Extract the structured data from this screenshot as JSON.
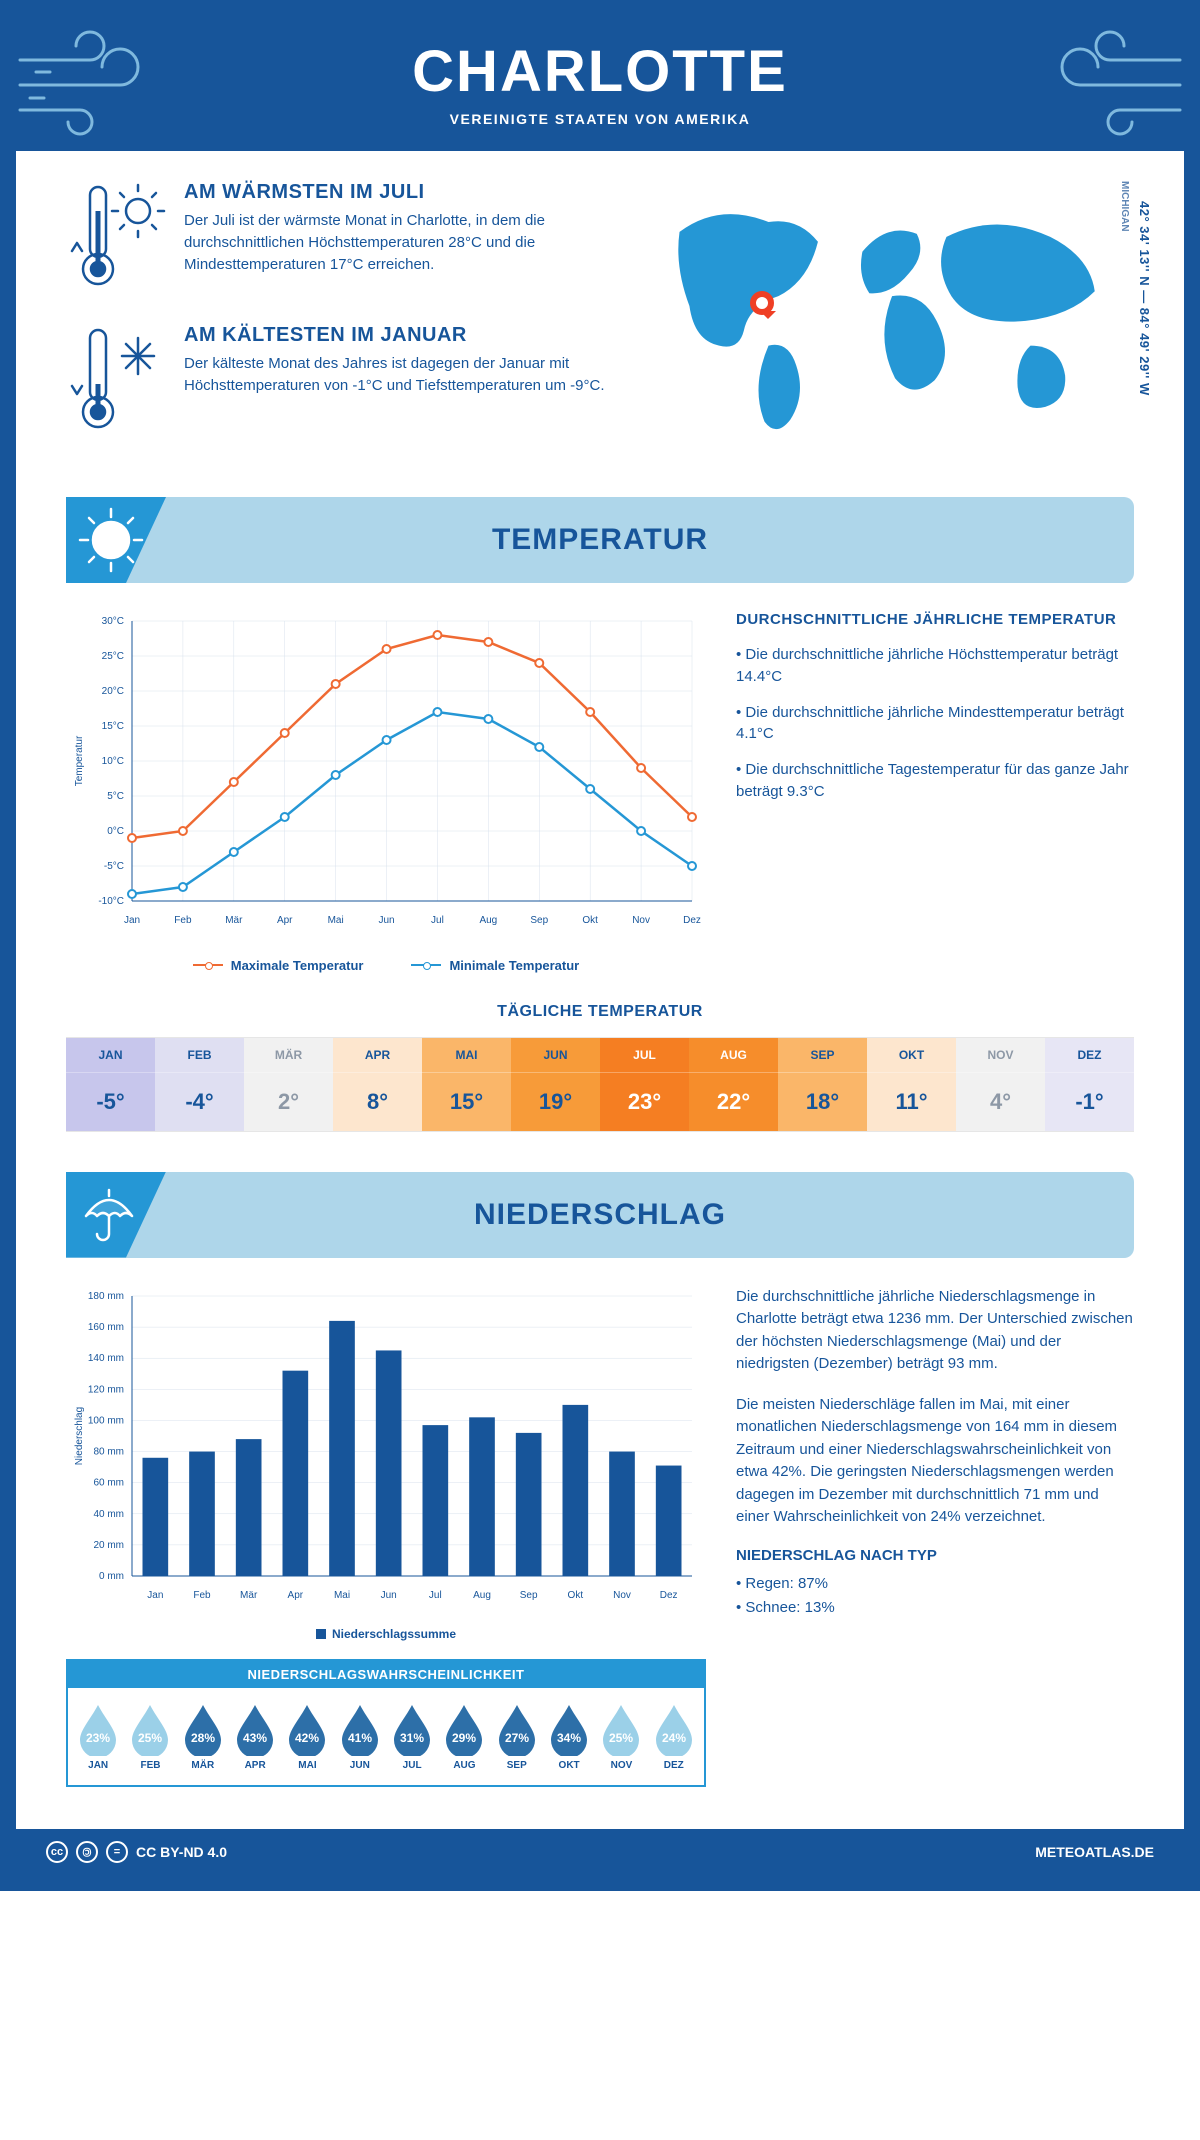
{
  "header": {
    "title": "CHARLOTTE",
    "subtitle": "VEREINIGTE STAATEN VON AMERIKA"
  },
  "location": {
    "coords": "42° 34' 13'' N — 84° 49' 29'' W",
    "region": "MICHIGAN",
    "pin_color": "#ef3f25",
    "map_color": "#2597d5"
  },
  "overview": {
    "warm": {
      "title": "AM WÄRMSTEN IM JULI",
      "text": "Der Juli ist der wärmste Monat in Charlotte, in dem die durchschnittlichen Höchsttemperaturen 28°C und die Mindesttemperaturen 17°C erreichen."
    },
    "cold": {
      "title": "AM KÄLTESTEN IM JANUAR",
      "text": "Der kälteste Monat des Jahres ist dagegen der Januar mit Höchsttemperaturen von -1°C und Tiefsttemperaturen um -9°C."
    }
  },
  "temperature": {
    "banner": "TEMPERATUR",
    "chart": {
      "type": "line",
      "months": [
        "Jan",
        "Feb",
        "Mär",
        "Apr",
        "Mai",
        "Jun",
        "Jul",
        "Aug",
        "Sep",
        "Okt",
        "Nov",
        "Dez"
      ],
      "series": [
        {
          "name": "Maximale Temperatur",
          "color": "#ef6a33",
          "values": [
            -1,
            0,
            7,
            14,
            21,
            26,
            28,
            27,
            24,
            17,
            9,
            2
          ]
        },
        {
          "name": "Minimale Temperatur",
          "color": "#2597d5",
          "values": [
            -9,
            -8,
            -3,
            2,
            8,
            13,
            17,
            16,
            12,
            6,
            0,
            -5
          ]
        }
      ],
      "ymin": -10,
      "ymax": 30,
      "ystep": 5,
      "yunit": "°C",
      "ylabel": "Temperatur",
      "grid_color": "#d8e2ed",
      "bg": "#ffffff"
    },
    "facts": {
      "title": "DURCHSCHNITTLICHE JÄHRLICHE TEMPERATUR",
      "bullets": [
        "• Die durchschnittliche jährliche Höchsttemperatur beträgt 14.4°C",
        "• Die durchschnittliche jährliche Mindesttemperatur beträgt 4.1°C",
        "• Die durchschnittliche Tagestemperatur für das ganze Jahr beträgt 9.3°C"
      ]
    },
    "daily": {
      "title": "TÄGLICHE TEMPERATUR",
      "months": [
        "JAN",
        "FEB",
        "MÄR",
        "APR",
        "MAI",
        "JUN",
        "JUL",
        "AUG",
        "SEP",
        "OKT",
        "NOV",
        "DEZ"
      ],
      "values": [
        "-5°",
        "-4°",
        "2°",
        "8°",
        "15°",
        "19°",
        "23°",
        "22°",
        "18°",
        "11°",
        "4°",
        "-1°"
      ],
      "colors": [
        "#c7c6ec",
        "#dfdff2",
        "#f1f1f1",
        "#fde6ce",
        "#fab669",
        "#f79b39",
        "#f57e22",
        "#f68d2b",
        "#fab669",
        "#fde6ce",
        "#f1f1f1",
        "#e7e6f5"
      ],
      "text_colors": [
        "#17559a",
        "#17559a",
        "#8d98a6",
        "#17559a",
        "#17559a",
        "#17559a",
        "#ffffff",
        "#ffffff",
        "#17559a",
        "#17559a",
        "#8d98a6",
        "#17559a"
      ]
    }
  },
  "precip": {
    "banner": "NIEDERSCHLAG",
    "chart": {
      "type": "bar",
      "months": [
        "Jan",
        "Feb",
        "Mär",
        "Apr",
        "Mai",
        "Jun",
        "Jul",
        "Aug",
        "Sep",
        "Okt",
        "Nov",
        "Dez"
      ],
      "values": [
        76,
        80,
        88,
        132,
        164,
        145,
        97,
        102,
        92,
        110,
        80,
        71
      ],
      "ymin": 0,
      "ymax": 180,
      "ystep": 20,
      "yunit": " mm",
      "ylabel": "Niederschlag",
      "bar_color": "#17559a",
      "grid_color": "#d8e2ed",
      "legend": "Niederschlagssumme"
    },
    "paragraphs": [
      "Die durchschnittliche jährliche Niederschlagsmenge in Charlotte beträgt etwa 1236 mm. Der Unterschied zwischen der höchsten Niederschlagsmenge (Mai) und der niedrigsten (Dezember) beträgt 93 mm.",
      "Die meisten Niederschläge fallen im Mai, mit einer monatlichen Niederschlagsmenge von 164 mm in diesem Zeitraum und einer Niederschlagswahrscheinlichkeit von etwa 42%. Die geringsten Niederschlagsmengen werden dagegen im Dezember mit durchschnittlich 71 mm und einer Wahrscheinlichkeit von 24% verzeichnet."
    ],
    "by_type": {
      "title": "NIEDERSCHLAG NACH TYP",
      "items": [
        "• Regen: 87%",
        "• Schnee: 13%"
      ]
    },
    "probability": {
      "title": "NIEDERSCHLAGSWAHRSCHEINLICHKEIT",
      "months": [
        "JAN",
        "FEB",
        "MÄR",
        "APR",
        "MAI",
        "JUN",
        "JUL",
        "AUG",
        "SEP",
        "OKT",
        "NOV",
        "DEZ"
      ],
      "values": [
        "23%",
        "25%",
        "28%",
        "43%",
        "42%",
        "41%",
        "31%",
        "29%",
        "27%",
        "34%",
        "25%",
        "24%"
      ],
      "colors": [
        "#9bd0e8",
        "#9bd0e8",
        "#2d6fa8",
        "#2d6fa8",
        "#2d6fa8",
        "#2d6fa8",
        "#2d6fa8",
        "#2d6fa8",
        "#2d6fa8",
        "#2d6fa8",
        "#9bd0e8",
        "#9bd0e8"
      ]
    }
  },
  "footer": {
    "license": "CC BY-ND 4.0",
    "site": "METEOATLAS.DE"
  }
}
